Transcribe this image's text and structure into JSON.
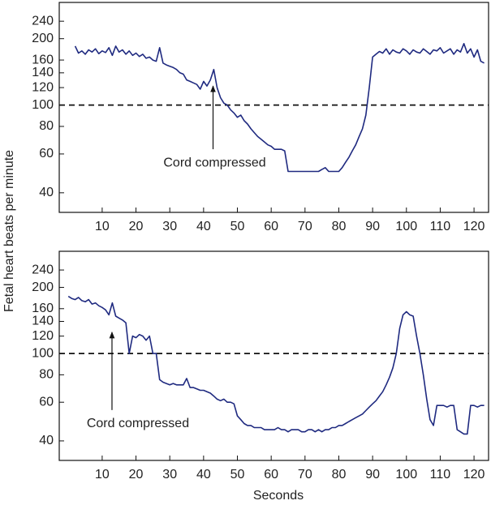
{
  "chart_data": [
    {
      "type": "line",
      "ylabel": "Fetal heart beats per minute",
      "log_y": true,
      "color": "#1f2a80",
      "xlim": [
        -2.7,
        124.3
      ],
      "xticks": [
        10,
        20,
        30,
        40,
        50,
        60,
        70,
        80,
        90,
        100,
        110,
        120
      ],
      "ylim": [
        32.6,
        292
      ],
      "yticks": [
        40,
        60,
        80,
        100,
        120,
        140,
        160,
        200,
        240
      ],
      "hline": 100,
      "annotation": {
        "text": "Cord compressed",
        "x": 42.8,
        "y": 122
      },
      "x": [
        2,
        3,
        4,
        5,
        6,
        7,
        8,
        9,
        10,
        11,
        12,
        13,
        14,
        15,
        16,
        17,
        18,
        19,
        20,
        21,
        22,
        23,
        24,
        25,
        26,
        27,
        28,
        29,
        30,
        31,
        32,
        33,
        34,
        35,
        36,
        37,
        38,
        39,
        40,
        41,
        42,
        43,
        44,
        45,
        46,
        47,
        48,
        49,
        50,
        51,
        52,
        53,
        54,
        55,
        56,
        57,
        58,
        59,
        60,
        61,
        62,
        63,
        64,
        65,
        66,
        67,
        68,
        69,
        70,
        71,
        72,
        73,
        74,
        75,
        76,
        77,
        78,
        79,
        80,
        81,
        82,
        83,
        84,
        85,
        86,
        87,
        88,
        89,
        90,
        91,
        92,
        93,
        94,
        95,
        96,
        97,
        98,
        99,
        100,
        101,
        102,
        103,
        104,
        105,
        106,
        107,
        108,
        109,
        110,
        111,
        112,
        113,
        114,
        115,
        116,
        117,
        118,
        119,
        120,
        121,
        122,
        123
      ],
      "values": [
        185,
        172,
        176,
        170,
        178,
        174,
        180,
        171,
        176,
        173,
        182,
        168,
        185,
        174,
        178,
        170,
        176,
        168,
        172,
        166,
        170,
        163,
        165,
        160,
        158,
        182,
        155,
        152,
        150,
        148,
        145,
        140,
        138,
        130,
        128,
        126,
        124,
        118,
        128,
        122,
        130,
        145,
        120,
        108,
        102,
        100,
        95,
        92,
        88,
        90,
        85,
        82,
        78,
        75,
        72,
        70,
        68,
        66,
        65,
        63,
        63,
        63,
        62,
        50,
        50,
        50,
        50,
        50,
        50,
        50,
        50,
        50,
        50,
        51,
        52,
        50,
        50,
        50,
        50,
        52,
        55,
        58,
        62,
        66,
        72,
        78,
        90,
        120,
        165,
        170,
        175,
        172,
        180,
        170,
        178,
        174,
        172,
        180,
        176,
        170,
        178,
        174,
        172,
        180,
        175,
        170,
        178,
        176,
        182,
        172,
        176,
        180,
        170,
        178,
        174,
        190,
        172,
        180,
        165,
        178,
        158,
        155
      ]
    },
    {
      "type": "line",
      "xlabel": "Seconds",
      "log_y": true,
      "color": "#1f2a80",
      "xlim": [
        -2.7,
        124.3
      ],
      "xticks": [
        10,
        20,
        30,
        40,
        50,
        60,
        70,
        80,
        90,
        100,
        110,
        120
      ],
      "ylim": [
        32.6,
        292
      ],
      "yticks": [
        40,
        60,
        80,
        100,
        120,
        140,
        160,
        200,
        240
      ],
      "hline": 100,
      "annotation": {
        "text": "Cord compressed",
        "x": 12.9,
        "y": 125
      },
      "x": [
        0,
        1,
        2,
        3,
        4,
        5,
        6,
        7,
        8,
        9,
        10,
        11,
        12,
        13,
        14,
        15,
        16,
        17,
        18,
        19,
        20,
        21,
        22,
        23,
        24,
        25,
        26,
        27,
        28,
        29,
        30,
        31,
        32,
        33,
        34,
        35,
        36,
        37,
        38,
        39,
        40,
        41,
        42,
        43,
        44,
        45,
        46,
        47,
        48,
        49,
        50,
        51,
        52,
        53,
        54,
        55,
        56,
        57,
        58,
        59,
        60,
        61,
        62,
        63,
        64,
        65,
        66,
        67,
        68,
        69,
        70,
        71,
        72,
        73,
        74,
        75,
        76,
        77,
        78,
        79,
        80,
        81,
        82,
        83,
        84,
        85,
        86,
        87,
        88,
        89,
        90,
        91,
        92,
        93,
        94,
        95,
        96,
        97,
        98,
        99,
        100,
        101,
        102,
        103,
        104,
        105,
        106,
        107,
        108,
        109,
        110,
        111,
        112,
        113,
        114,
        115,
        116,
        117,
        118,
        119,
        120,
        121,
        122,
        123
      ],
      "values": [
        182,
        178,
        176,
        180,
        174,
        172,
        176,
        168,
        170,
        165,
        162,
        158,
        150,
        170,
        148,
        145,
        142,
        138,
        100,
        120,
        118,
        122,
        120,
        115,
        120,
        100,
        100,
        76,
        74,
        73,
        72,
        73,
        72,
        72,
        72,
        77,
        70,
        70,
        69,
        68,
        68,
        67,
        66,
        64,
        62,
        61,
        62,
        60,
        60,
        59,
        52,
        50,
        48,
        47,
        47,
        46,
        46,
        46,
        45,
        45,
        45,
        45,
        46,
        45,
        45,
        44,
        45,
        45,
        45,
        44,
        44,
        45,
        45,
        44,
        45,
        44,
        45,
        45,
        46,
        46,
        47,
        47,
        48,
        49,
        50,
        51,
        52,
        53,
        55,
        57,
        59,
        61,
        64,
        67,
        72,
        78,
        86,
        100,
        130,
        150,
        155,
        150,
        148,
        120,
        100,
        80,
        62,
        50,
        47,
        58,
        58,
        58,
        57,
        58,
        58,
        45,
        44,
        43,
        43,
        58,
        58,
        57,
        58,
        58
      ]
    }
  ]
}
